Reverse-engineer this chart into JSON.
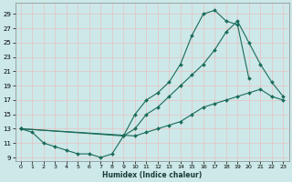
{
  "xlabel": "Humidex (Indice chaleur)",
  "bg_color": "#cce8e8",
  "line_color": "#1a6b5a",
  "grid_color": "#e8c0c0",
  "xlim": [
    -0.5,
    23.5
  ],
  "ylim": [
    8.5,
    30.5
  ],
  "xticks": [
    0,
    1,
    2,
    3,
    4,
    5,
    6,
    7,
    8,
    9,
    10,
    11,
    12,
    13,
    14,
    15,
    16,
    17,
    18,
    19,
    20,
    21,
    22,
    23
  ],
  "yticks": [
    9,
    11,
    13,
    15,
    17,
    19,
    21,
    23,
    25,
    27,
    29
  ],
  "curve1_x": [
    0,
    1,
    2,
    3,
    4,
    5,
    6,
    7,
    8,
    9,
    10,
    11,
    12,
    13,
    14,
    15,
    16,
    17,
    18,
    19,
    20
  ],
  "curve1_y": [
    13,
    12.5,
    11,
    10.5,
    10,
    9.5,
    9.5,
    9,
    9.5,
    12,
    15,
    17,
    18,
    19.5,
    22,
    26,
    29,
    29.5,
    28,
    27.5,
    20
  ],
  "curve2_x": [
    0,
    9,
    10,
    11,
    12,
    13,
    14,
    15,
    16,
    17,
    18,
    19,
    20,
    21,
    22,
    23
  ],
  "curve2_y": [
    13,
    12,
    13,
    15,
    16,
    17.5,
    19,
    20.5,
    22,
    24,
    26.5,
    28,
    25,
    22,
    19.5,
    17.5
  ],
  "curve3_x": [
    0,
    10,
    11,
    12,
    13,
    14,
    15,
    16,
    17,
    18,
    19,
    20,
    21,
    22,
    23
  ],
  "curve3_y": [
    13,
    12,
    12.5,
    13,
    13.5,
    14,
    15,
    16,
    16.5,
    17,
    17.5,
    18,
    18.5,
    17.5,
    17
  ]
}
